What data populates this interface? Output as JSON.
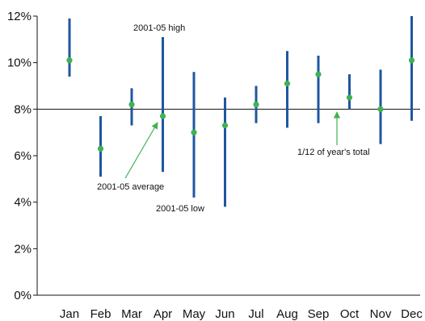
{
  "chart_data": {
    "type": "range-dot",
    "categories": [
      "Jan",
      "Feb",
      "Mar",
      "Apr",
      "May",
      "Jun",
      "Jul",
      "Aug",
      "Sep",
      "Oct",
      "Nov",
      "Dec"
    ],
    "series": [
      {
        "name": "2001-05 high",
        "values": [
          11.9,
          7.7,
          8.9,
          11.1,
          9.6,
          8.5,
          9.0,
          10.5,
          10.3,
          9.5,
          9.7,
          12.0
        ]
      },
      {
        "name": "2001-05 low",
        "values": [
          9.4,
          5.1,
          7.3,
          5.3,
          4.2,
          3.8,
          7.4,
          7.2,
          7.4,
          8.0,
          6.5,
          7.5
        ]
      },
      {
        "name": "2001-05 average",
        "values": [
          10.1,
          6.3,
          8.2,
          7.7,
          7.0,
          7.3,
          8.2,
          9.1,
          9.5,
          8.5,
          8.0,
          10.1
        ]
      }
    ],
    "reference_line": {
      "value": 8,
      "label": "1/12 of year's total"
    },
    "ylim": [
      0,
      12
    ],
    "y_ticks": [
      "0%",
      "2%",
      "4%",
      "6%",
      "8%",
      "10%",
      "12%"
    ],
    "annotations": [
      "2001-05 high",
      "2001-05 average",
      "2001-05 low",
      "1/12 of year's total"
    ],
    "colors": {
      "range": "#1f56a0",
      "dot": "#3fb34f",
      "arrow": "#3fb34f",
      "axis": "#111111"
    },
    "grid": false
  }
}
